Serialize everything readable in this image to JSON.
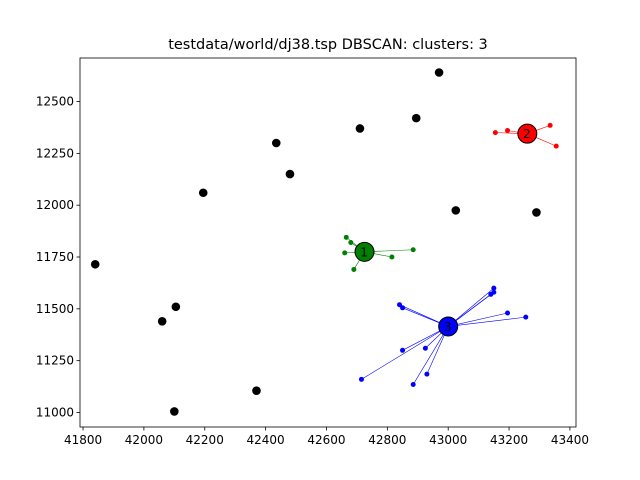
{
  "chart_data": {
    "type": "scatter",
    "title": "testdata/world/dj38.tsp DBSCAN: clusters: 3",
    "xlabel": "",
    "ylabel": "",
    "xlim": [
      41790,
      43420
    ],
    "ylim": [
      10930,
      12710
    ],
    "xticks": [
      41800,
      42000,
      42200,
      42400,
      42600,
      42800,
      43000,
      43200,
      43400
    ],
    "yticks": [
      11000,
      11250,
      11500,
      11750,
      12000,
      12250,
      12500
    ],
    "noise_color": "#000000",
    "noise": [
      {
        "x": 42970,
        "y": 12640
      },
      {
        "x": 42895,
        "y": 12420
      },
      {
        "x": 42710,
        "y": 12370
      },
      {
        "x": 42435,
        "y": 12300
      },
      {
        "x": 42480,
        "y": 12150
      },
      {
        "x": 42195,
        "y": 12060
      },
      {
        "x": 43025,
        "y": 11975
      },
      {
        "x": 43290,
        "y": 11965
      },
      {
        "x": 41840,
        "y": 11715
      },
      {
        "x": 42105,
        "y": 11510
      },
      {
        "x": 42060,
        "y": 11440
      },
      {
        "x": 42370,
        "y": 11105
      },
      {
        "x": 42100,
        "y": 11005
      }
    ],
    "clusters": [
      {
        "label": "1",
        "color": "#008000",
        "center": {
          "x": 42725,
          "y": 11775
        },
        "members": [
          {
            "x": 42665,
            "y": 11845
          },
          {
            "x": 42680,
            "y": 11820
          },
          {
            "x": 42660,
            "y": 11770
          },
          {
            "x": 42885,
            "y": 11785
          },
          {
            "x": 42815,
            "y": 11750
          },
          {
            "x": 42690,
            "y": 11690
          }
        ]
      },
      {
        "label": "2",
        "color": "#ff0000",
        "center": {
          "x": 43260,
          "y": 12345
        },
        "members": [
          {
            "x": 43155,
            "y": 12350
          },
          {
            "x": 43195,
            "y": 12360
          },
          {
            "x": 43335,
            "y": 12385
          },
          {
            "x": 43355,
            "y": 12285
          }
        ]
      },
      {
        "label": "3",
        "color": "#0000ff",
        "center": {
          "x": 43000,
          "y": 11415
        },
        "members": [
          {
            "x": 43150,
            "y": 11600
          },
          {
            "x": 43150,
            "y": 11580
          },
          {
            "x": 43140,
            "y": 11570
          },
          {
            "x": 42840,
            "y": 11520
          },
          {
            "x": 42850,
            "y": 11505
          },
          {
            "x": 43195,
            "y": 11480
          },
          {
            "x": 43255,
            "y": 11460
          },
          {
            "x": 42850,
            "y": 11300
          },
          {
            "x": 42925,
            "y": 11310
          },
          {
            "x": 42930,
            "y": 11185
          },
          {
            "x": 42715,
            "y": 11160
          },
          {
            "x": 42885,
            "y": 11135
          }
        ]
      }
    ]
  }
}
